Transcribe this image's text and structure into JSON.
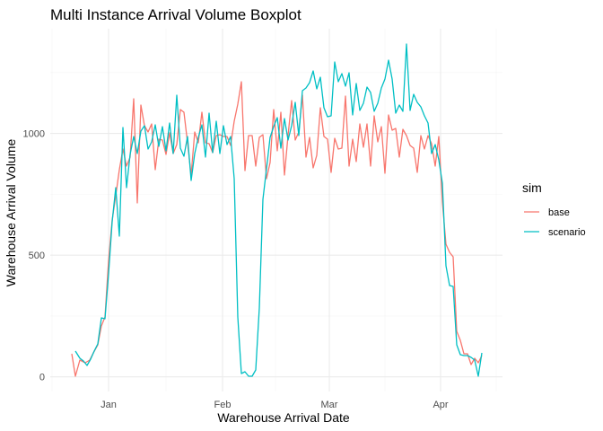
{
  "chart_data": {
    "type": "line",
    "title": "Multi Instance Arrival Volume Boxplot",
    "xlabel": "Warehouse Arrival Date",
    "ylabel": "Warehouse Arrival Volume",
    "x_tick_labels": [
      "Jan",
      "Feb",
      "Mar",
      "Apr"
    ],
    "y_tick_labels": [
      "0",
      "500",
      "1000"
    ],
    "y_ticks": [
      0,
      500,
      1000
    ],
    "ylim": [
      -60,
      1430
    ],
    "grid": true,
    "legend": {
      "title": "sim",
      "position": "right"
    },
    "series": [
      {
        "name": "base",
        "color": "#F8766D"
      },
      {
        "name": "scenario",
        "color": "#00BFC4"
      }
    ]
  }
}
